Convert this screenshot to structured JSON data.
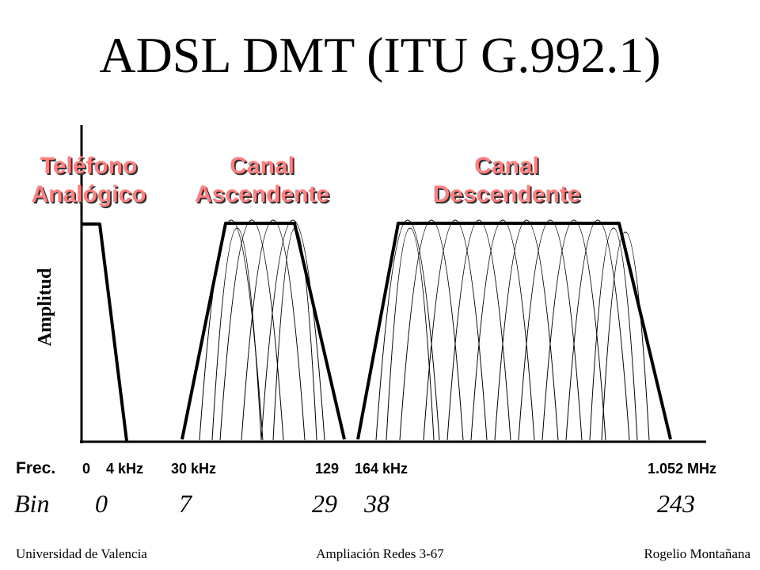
{
  "title": "ADSL DMT (ITU G.992.1)",
  "bands": {
    "phone": {
      "line1": "Teléfono",
      "line2": "Analógico"
    },
    "upstream": {
      "line1": "Canal",
      "line2": "Ascendente"
    },
    "downstream": {
      "line1": "Canal",
      "line2": "Descendente"
    }
  },
  "axis": {
    "ylabel": "Amplitud"
  },
  "frequency": {
    "label": "Frec.",
    "ticks": [
      "0",
      "4 kHz",
      "30 kHz",
      "129",
      "164 kHz",
      "1.052 MHz"
    ]
  },
  "bins": {
    "label": "Bin",
    "values": [
      "0",
      "7",
      "29",
      "38",
      "243"
    ]
  },
  "footer": {
    "left": "Universidad de Valencia",
    "center": "Ampliación Redes 3-67",
    "right": "Rogelio Montañana"
  }
}
